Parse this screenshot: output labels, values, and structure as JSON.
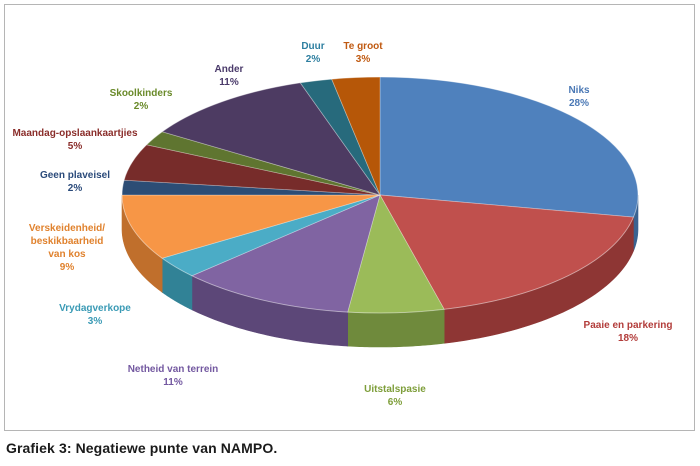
{
  "caption": "Grafiek 3: Negatiewe punte van NAMPO.",
  "chart_data": {
    "type": "pie",
    "title": "",
    "slices": [
      {
        "label": [
          "Niks"
        ],
        "value": 28,
        "pct": "28%",
        "color": "#4f81bd",
        "side": "#3a6391",
        "text": "#4a78b5"
      },
      {
        "label": [
          "Paaie en parkering"
        ],
        "value": 18,
        "pct": "18%",
        "color": "#c0504d",
        "side": "#8e3634",
        "text": "#b23c3a"
      },
      {
        "label": [
          "Uitstalspasie"
        ],
        "value": 6,
        "pct": "6%",
        "color": "#9bbb59",
        "side": "#6f8a3c",
        "text": "#7e9e3a"
      },
      {
        "label": [
          "Netheid van terrein"
        ],
        "value": 11,
        "pct": "11%",
        "color": "#8064a2",
        "side": "#5c4778",
        "text": "#7358a0"
      },
      {
        "label": [
          "Vrydagverkope"
        ],
        "value": 3,
        "pct": "3%",
        "color": "#4bacc6",
        "side": "#318296",
        "text": "#3a9ab5"
      },
      {
        "label": [
          "Verskeidenheid/",
          "beskikbaarheid",
          "van kos"
        ],
        "value": 9,
        "pct": "9%",
        "color": "#f79646",
        "side": "#c06f2c",
        "text": "#e0822e"
      },
      {
        "label": [
          "Geen plaveisel"
        ],
        "value": 2,
        "pct": "2%",
        "color": "#2c4d75",
        "side": "#1d3552",
        "text": "#2a4a7a"
      },
      {
        "label": [
          "Maandag-opslaankaartjies"
        ],
        "value": 5,
        "pct": "5%",
        "color": "#772c2a",
        "side": "#521c1b",
        "text": "#8a2d2a"
      },
      {
        "label": [
          "Skoolkinders"
        ],
        "value": 2,
        "pct": "2%",
        "color": "#5f7530",
        "side": "#40501e",
        "text": "#6a8a2a"
      },
      {
        "label": [
          "Ander"
        ],
        "value": 11,
        "pct": "11%",
        "color": "#4d3b62",
        "side": "#342841",
        "text": "#4a3a6a"
      },
      {
        "label": [
          "Duur"
        ],
        "value": 2,
        "pct": "2%",
        "color": "#276a7c",
        "side": "#1a4856",
        "text": "#2e7fa0"
      },
      {
        "label": [
          "Te groot"
        ],
        "value": 3,
        "pct": "3%",
        "color": "#b65708",
        "side": "#7e3c05",
        "text": "#c05a12"
      }
    ]
  }
}
